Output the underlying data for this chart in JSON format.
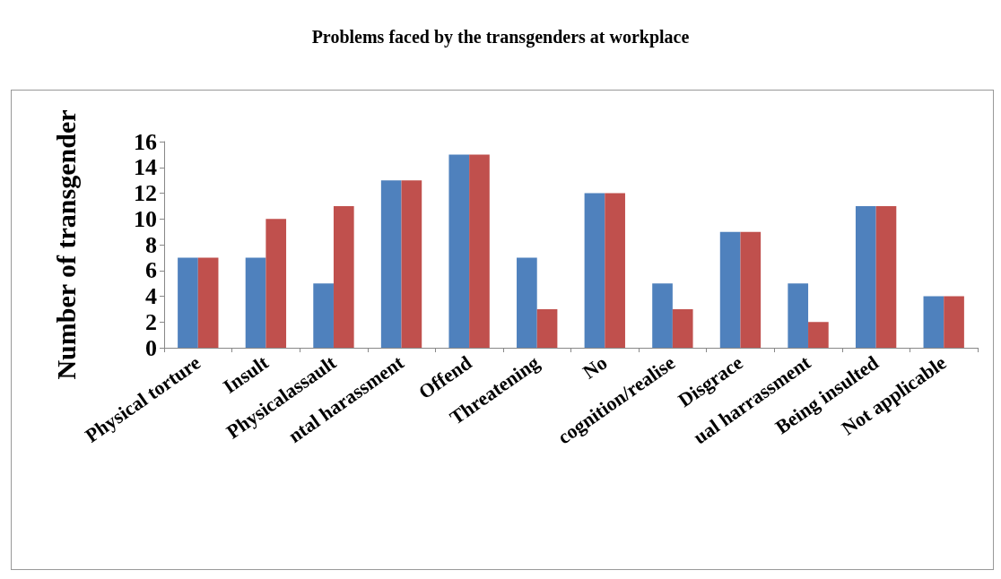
{
  "chart_data": {
    "type": "bar",
    "title": "Problems faced by the transgenders at workplace",
    "ylabel": "Number of transgender",
    "categories": [
      "Physical torture",
      "Insult",
      "Physicalassault",
      "ntal harassment",
      "Offend",
      "Threatening",
      "No",
      "cognition/realise",
      "Disgrace",
      "ual harrassment",
      "Being insulted",
      "Not applicable"
    ],
    "series": [
      {
        "color": "#4f81bd",
        "values": [
          7,
          7,
          5,
          13,
          15,
          7,
          12,
          5,
          9,
          5,
          11,
          4
        ]
      },
      {
        "color": "#c0504d",
        "values": [
          7,
          10,
          11,
          13,
          15,
          3,
          12,
          3,
          9,
          2,
          11,
          4
        ]
      }
    ],
    "ylim": [
      0,
      16
    ],
    "yticks": [
      0,
      2,
      4,
      6,
      8,
      10,
      12,
      14,
      16
    ],
    "grid": false
  }
}
